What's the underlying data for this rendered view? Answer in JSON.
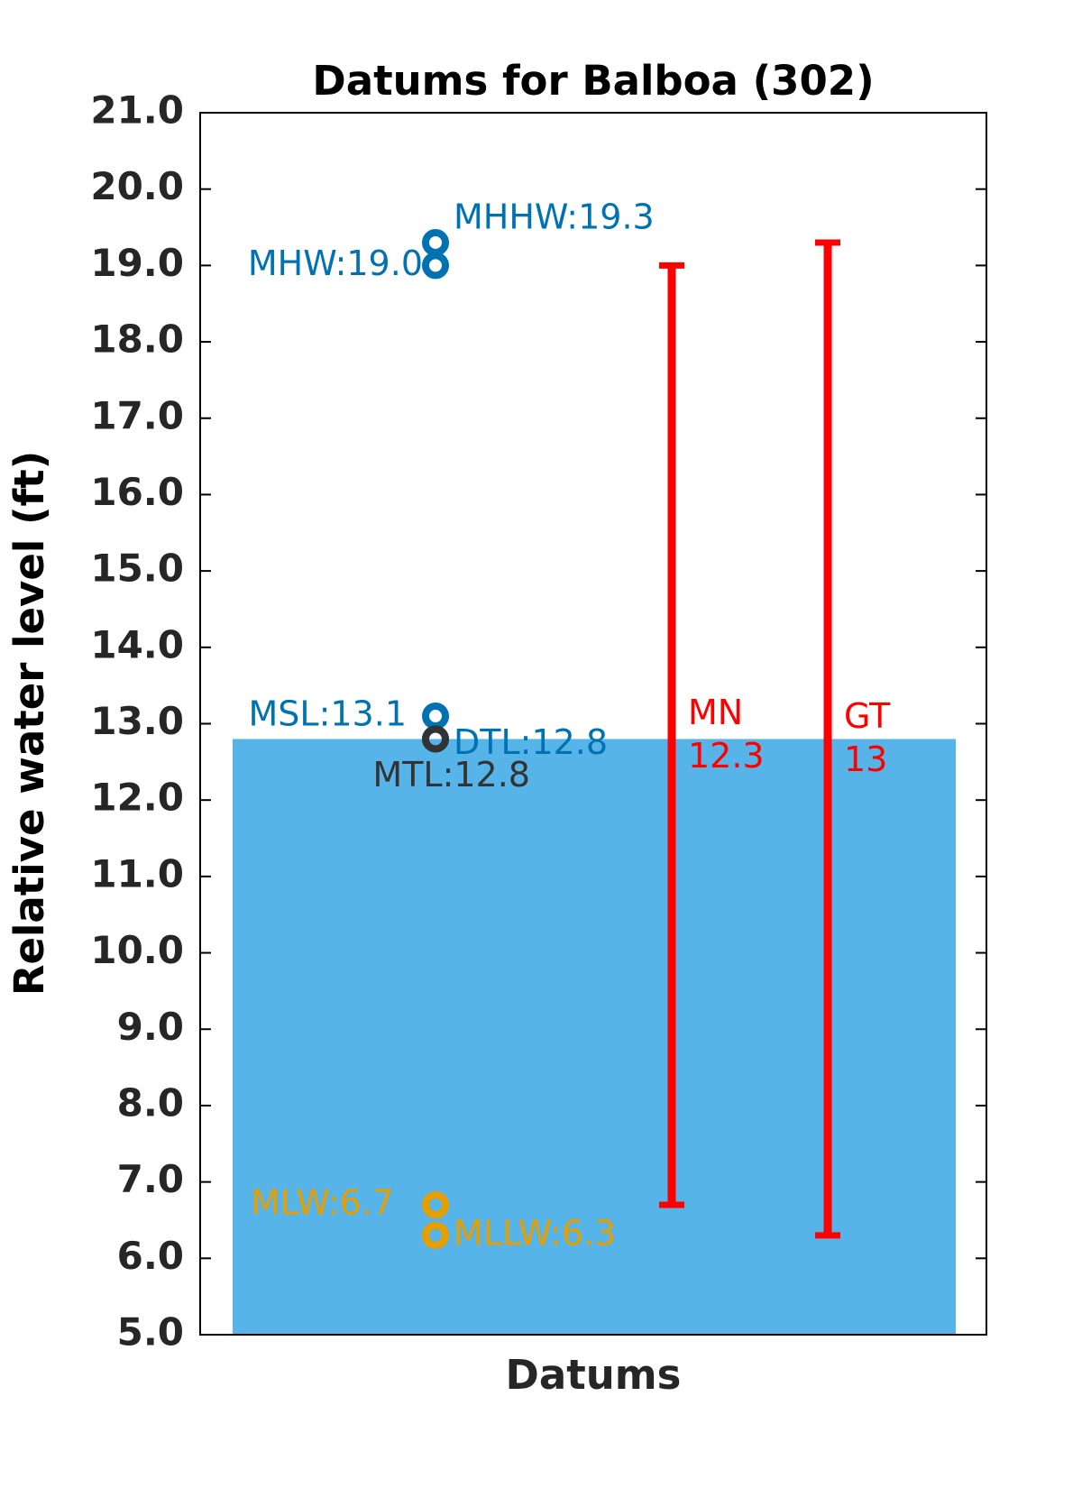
{
  "chart_data": {
    "type": "datum",
    "title": "Datums for Balboa (302)",
    "y_label": "Relative water level (ft)",
    "x_label": "Datums",
    "ylim": [
      5,
      21
    ],
    "yticks": [
      {
        "value": 5,
        "label": "5.0"
      },
      {
        "value": 6,
        "label": "6.0"
      },
      {
        "value": 7,
        "label": "7.0"
      },
      {
        "value": 8,
        "label": "8.0"
      },
      {
        "value": 9,
        "label": "9.0"
      },
      {
        "value": 10,
        "label": "10.0"
      },
      {
        "value": 11,
        "label": "11.0"
      },
      {
        "value": 12,
        "label": "12.0"
      },
      {
        "value": 13,
        "label": "13.0"
      },
      {
        "value": 14,
        "label": "14.0"
      },
      {
        "value": 15,
        "label": "15.0"
      },
      {
        "value": 16,
        "label": "16.0"
      },
      {
        "value": 17,
        "label": "17.0"
      },
      {
        "value": 18,
        "label": "18.0"
      },
      {
        "value": 19,
        "label": "19.0"
      },
      {
        "value": 20,
        "label": "20.0"
      },
      {
        "value": 21,
        "label": "21.0"
      }
    ],
    "bar": {
      "value": 12.8,
      "color": "#56b4e9"
    },
    "points": [
      {
        "value": 19.3,
        "label": "MHHW:19.3",
        "color": "#0072b2"
      },
      {
        "value": 19.0,
        "label": "MHW:19.0",
        "color": "#0072b2"
      },
      {
        "value": 13.1,
        "label": "MSL:13.1",
        "color": "#0072b2"
      },
      {
        "value": 12.8,
        "label": "DTL:12.8",
        "color": "#0072b2"
      },
      {
        "value": 12.8,
        "label": "MTL:12.8",
        "color": "#333333"
      },
      {
        "value": 6.7,
        "label": "MLW:6.7",
        "color": "#e69f00"
      },
      {
        "value": 6.3,
        "label": "MLLW:6.3",
        "color": "#e69f00"
      }
    ],
    "ranges": [
      {
        "name": "MN",
        "value": 12.3,
        "low": 6.7,
        "high": 19.0,
        "color": "#ff0000"
      },
      {
        "name": "GT",
        "value": 13.0,
        "low": 6.3,
        "high": 19.3,
        "color": "#ff0000"
      }
    ]
  }
}
